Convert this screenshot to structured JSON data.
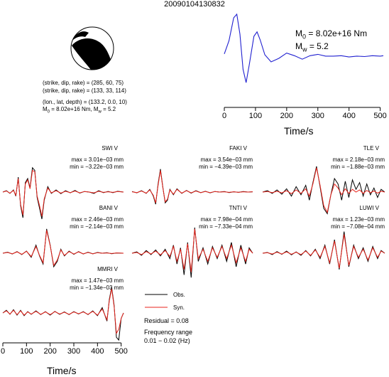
{
  "title": "20090104130832",
  "source_params": {
    "plane1": "(strike, dip, rake) = (285, 60, 75)",
    "plane2": "(strike, dip, rake) = (133, 33, 114)",
    "location": "(lon., lat, depth) = (133.2, 0.0, 10)",
    "moment": "M",
    "moment_sub": "0",
    "moment_val": " = 8.02e+16 Nm, M",
    "mw_sub": "w",
    "mw_val": " = 5.2"
  },
  "stf_labels": {
    "m0": "M",
    "m0_sub": "0",
    "m0_val": " = 8.02e+16 Nm",
    "mw": "M",
    "mw_sub": "w",
    "mw_val": " = 5.2"
  },
  "legend": {
    "obs": "Obs.",
    "syn": "Syn.",
    "residual": "Residual = 0.08",
    "freq_title": "Frequency range",
    "freq_range": "0.01 − 0.02 (Hz)"
  },
  "colors": {
    "observed": "#000000",
    "synthetic": "#e8231b",
    "stf": "#2020d0"
  },
  "chart_data": [
    {
      "type": "line",
      "name": "source time function",
      "xlabel": "Time/s",
      "xlim": [
        0,
        510
      ],
      "xticks": [
        0,
        100,
        200,
        300,
        400,
        500
      ],
      "x": [
        0,
        15,
        30,
        40,
        50,
        60,
        70,
        80,
        95,
        105,
        115,
        130,
        150,
        175,
        200,
        225,
        250,
        275,
        300,
        325,
        350,
        375,
        400,
        425,
        450,
        475,
        500,
        510
      ],
      "values": [
        0.1,
        0.4,
        0.92,
        1.0,
        0.55,
        -0.25,
        -0.55,
        -0.15,
        0.5,
        0.6,
        0.42,
        0.08,
        -0.08,
        0.0,
        0.12,
        0.06,
        -0.02,
        0.06,
        0.09,
        0.05,
        0.05,
        0.06,
        0.03,
        0.05,
        0.04,
        0.06,
        0.05,
        0.06
      ]
    },
    {
      "type": "line",
      "station": "SWI V",
      "max": "max = 3.01e−03 mm",
      "min": "min = −3.22e−03 mm",
      "series": [
        {
          "name": "Obs.",
          "x": [
            0,
            15,
            30,
            45,
            55,
            65,
            75,
            85,
            95,
            105,
            115,
            125,
            135,
            145,
            155,
            165,
            175,
            190,
            205,
            225,
            245,
            265,
            285,
            305,
            325,
            345,
            365,
            385,
            405,
            425,
            445,
            465,
            485,
            510
          ],
          "values": [
            0.0,
            0.05,
            -0.05,
            0.08,
            -0.15,
            0.55,
            -0.5,
            -0.95,
            0.35,
            0.5,
            0.15,
            0.9,
            0.8,
            -0.2,
            -0.6,
            -1.0,
            -0.3,
            0.2,
            -0.05,
            0.08,
            -0.06,
            0.05,
            -0.03,
            0.06,
            -0.04,
            0.02,
            0.0,
            -0.05,
            0.05,
            -0.02,
            0.02,
            -0.02,
            0.03,
            0.0
          ]
        },
        {
          "name": "Syn.",
          "x": [
            0,
            15,
            30,
            45,
            55,
            65,
            75,
            85,
            95,
            105,
            115,
            125,
            135,
            145,
            155,
            165,
            175,
            190,
            205,
            225,
            245,
            265,
            285,
            305,
            325,
            345,
            365,
            385,
            405,
            425,
            445,
            465,
            485,
            510
          ],
          "values": [
            0.0,
            0.04,
            -0.04,
            0.06,
            -0.12,
            0.5,
            -0.45,
            -0.85,
            0.3,
            0.45,
            0.12,
            0.8,
            0.75,
            -0.15,
            -0.5,
            -0.9,
            -0.25,
            0.15,
            -0.03,
            0.05,
            -0.04,
            0.03,
            -0.02,
            0.04,
            -0.03,
            0.02,
            0.0,
            -0.03,
            0.03,
            -0.01,
            0.01,
            -0.01,
            0.02,
            0.0
          ]
        }
      ]
    },
    {
      "type": "line",
      "station": "FAKI V",
      "max": "max = 3.54e−03 mm",
      "min": "min = −4.39e−03 mm",
      "series": [
        {
          "name": "Obs.",
          "x": [
            0,
            20,
            40,
            60,
            75,
            90,
            100,
            110,
            120,
            130,
            140,
            150,
            160,
            175,
            190,
            210,
            230,
            250,
            270,
            290,
            310,
            330,
            350,
            370,
            390,
            410,
            430,
            450,
            470,
            490,
            510
          ],
          "values": [
            0.02,
            -0.03,
            0.05,
            -0.05,
            0.1,
            -0.15,
            -0.45,
            0.3,
            0.85,
            0.2,
            -0.4,
            -0.3,
            0.1,
            -0.1,
            0.12,
            -0.05,
            0.06,
            -0.04,
            0.05,
            -0.02,
            0.03,
            -0.03,
            0.02,
            0.0,
            0.02,
            -0.02,
            0.01,
            -0.01,
            0.02,
            0.0,
            0.01
          ]
        },
        {
          "name": "Syn.",
          "x": [
            0,
            20,
            40,
            60,
            75,
            90,
            100,
            110,
            120,
            130,
            140,
            150,
            160,
            175,
            190,
            210,
            230,
            250,
            270,
            290,
            310,
            330,
            350,
            370,
            390,
            410,
            430,
            450,
            470,
            490,
            510
          ],
          "values": [
            0.01,
            -0.02,
            0.04,
            -0.04,
            0.08,
            -0.12,
            -0.4,
            0.25,
            0.8,
            0.18,
            -0.36,
            -0.26,
            0.08,
            -0.08,
            0.1,
            -0.04,
            0.05,
            -0.03,
            0.04,
            -0.02,
            0.02,
            -0.02,
            0.02,
            0.0,
            0.01,
            -0.01,
            0.01,
            -0.01,
            0.01,
            0.0,
            0.01
          ]
        }
      ]
    },
    {
      "type": "line",
      "station": "TLE V",
      "max": "max = 2.18e−03 mm",
      "min": "min = −1.88e−03 mm",
      "series": [
        {
          "name": "Obs.",
          "x": [
            0,
            20,
            40,
            60,
            80,
            100,
            120,
            140,
            160,
            180,
            195,
            210,
            225,
            240,
            255,
            270,
            285,
            300,
            315,
            330,
            345,
            360,
            375,
            390,
            405,
            420,
            435,
            450,
            465,
            480,
            495,
            510
          ],
          "values": [
            0.0,
            0.05,
            -0.05,
            0.08,
            -0.08,
            0.12,
            -0.15,
            0.2,
            -0.1,
            0.25,
            -0.3,
            0.35,
            0.95,
            0.2,
            -0.6,
            -0.8,
            -0.1,
            0.5,
            0.3,
            -0.3,
            0.4,
            -0.2,
            0.45,
            0.1,
            0.35,
            -0.15,
            0.3,
            -0.1,
            0.15,
            -0.2,
            0.1,
            0.0
          ]
        },
        {
          "name": "Syn.",
          "x": [
            0,
            20,
            40,
            60,
            80,
            100,
            120,
            140,
            160,
            180,
            195,
            210,
            225,
            240,
            255,
            270,
            285,
            300,
            315,
            330,
            345,
            360,
            375,
            390,
            405,
            420,
            435,
            450,
            465,
            480,
            495,
            510
          ],
          "values": [
            0.0,
            0.02,
            -0.02,
            0.03,
            -0.03,
            0.05,
            -0.06,
            0.08,
            -0.05,
            0.12,
            -0.15,
            0.3,
            0.9,
            0.25,
            -0.5,
            -0.75,
            -0.1,
            0.3,
            0.15,
            -0.1,
            0.12,
            -0.05,
            0.1,
            0.0,
            0.08,
            -0.05,
            0.06,
            -0.02,
            0.04,
            -0.04,
            0.03,
            0.0
          ]
        }
      ]
    },
    {
      "type": "line",
      "station": "BANI V",
      "max": "max = 2.46e−03 mm",
      "min": "min = −2.14e−03 mm",
      "series": [
        {
          "name": "Obs.",
          "x": [
            0,
            20,
            40,
            60,
            80,
            100,
            120,
            140,
            155,
            170,
            185,
            200,
            215,
            230,
            245,
            260,
            280,
            300,
            320,
            340,
            360,
            380,
            400,
            420,
            440,
            460,
            480,
            510
          ],
          "values": [
            0.0,
            0.04,
            -0.03,
            0.06,
            -0.05,
            0.08,
            -0.15,
            0.3,
            -0.1,
            -0.4,
            0.9,
            0.3,
            -0.5,
            -0.3,
            0.15,
            -0.1,
            0.08,
            -0.04,
            0.06,
            -0.03,
            0.04,
            -0.02,
            0.03,
            0.0,
            0.02,
            -0.02,
            0.01,
            0.0
          ]
        },
        {
          "name": "Syn.",
          "x": [
            0,
            20,
            40,
            60,
            80,
            100,
            120,
            140,
            155,
            170,
            185,
            200,
            215,
            230,
            245,
            260,
            280,
            300,
            320,
            340,
            360,
            380,
            400,
            420,
            440,
            460,
            480,
            510
          ],
          "values": [
            0.0,
            0.03,
            -0.02,
            0.05,
            -0.04,
            0.07,
            -0.12,
            0.25,
            -0.08,
            -0.35,
            0.85,
            0.28,
            -0.45,
            -0.25,
            0.12,
            -0.08,
            0.06,
            -0.03,
            0.05,
            -0.02,
            0.03,
            -0.02,
            0.02,
            0.0,
            0.01,
            -0.01,
            0.01,
            0.0
          ]
        }
      ]
    },
    {
      "type": "line",
      "station": "TNTI V",
      "max": "max = 7.98e−04 mm",
      "min": "min = −7.33e−04 mm",
      "series": [
        {
          "name": "Obs.",
          "x": [
            0,
            20,
            40,
            60,
            80,
            100,
            120,
            140,
            160,
            175,
            190,
            205,
            220,
            235,
            250,
            265,
            280,
            300,
            320,
            340,
            360,
            380,
            400,
            420,
            440,
            460,
            480,
            495,
            510
          ],
          "values": [
            0.0,
            0.05,
            -0.08,
            0.1,
            -0.05,
            0.12,
            -0.1,
            0.15,
            -0.2,
            0.3,
            -0.4,
            0.2,
            -0.8,
            0.4,
            -0.9,
            0.95,
            -0.3,
            0.2,
            -0.4,
            0.25,
            -0.2,
            0.3,
            -0.3,
            0.4,
            -0.5,
            0.3,
            -0.4,
            0.2,
            0.0
          ]
        },
        {
          "name": "Syn.",
          "x": [
            0,
            20,
            40,
            60,
            80,
            100,
            120,
            140,
            160,
            175,
            190,
            205,
            220,
            235,
            250,
            265,
            280,
            300,
            320,
            340,
            360,
            380,
            400,
            420,
            440,
            460,
            480,
            495,
            510
          ],
          "values": [
            0.0,
            0.03,
            -0.05,
            0.06,
            -0.03,
            0.08,
            -0.06,
            0.1,
            -0.12,
            0.25,
            -0.3,
            0.15,
            -0.6,
            0.35,
            -0.7,
            0.9,
            -0.2,
            0.15,
            -0.3,
            0.2,
            -0.15,
            0.25,
            -0.2,
            0.3,
            -0.35,
            0.2,
            -0.3,
            0.15,
            0.0
          ]
        }
      ]
    },
    {
      "type": "line",
      "station": "LUWI V",
      "max": "max = 1.23e−03 mm",
      "min": "min = −7.08e−04 mm",
      "series": [
        {
          "name": "Obs.",
          "x": [
            0,
            20,
            40,
            60,
            80,
            100,
            120,
            140,
            160,
            180,
            200,
            220,
            240,
            260,
            280,
            300,
            320,
            340,
            360,
            380,
            400,
            420,
            440,
            460,
            480,
            495,
            510
          ],
          "values": [
            0.0,
            0.03,
            -0.05,
            0.06,
            -0.04,
            0.08,
            -0.06,
            0.05,
            -0.08,
            0.1,
            -0.1,
            0.15,
            -0.2,
            0.3,
            -0.4,
            0.5,
            -0.6,
            0.8,
            -0.5,
            0.3,
            -0.2,
            0.2,
            -0.3,
            0.25,
            -0.2,
            0.1,
            0.0
          ]
        },
        {
          "name": "Syn.",
          "x": [
            0,
            20,
            40,
            60,
            80,
            100,
            120,
            140,
            160,
            180,
            200,
            220,
            240,
            260,
            280,
            300,
            320,
            340,
            360,
            380,
            400,
            420,
            440,
            460,
            480,
            495,
            510
          ],
          "values": [
            0.0,
            0.02,
            -0.03,
            0.04,
            -0.03,
            0.05,
            -0.04,
            0.04,
            -0.05,
            0.08,
            -0.08,
            0.12,
            -0.15,
            0.25,
            -0.35,
            0.45,
            -0.55,
            0.7,
            -0.45,
            0.25,
            -0.15,
            0.15,
            -0.25,
            0.2,
            -0.15,
            0.08,
            0.0
          ]
        }
      ]
    },
    {
      "type": "line",
      "station": "MMRI V",
      "max": "max = 1.47e−03 mm",
      "min": "min = −1.34e−03 mm",
      "xlabel": "Time/s",
      "xlim": [
        0,
        510
      ],
      "xticks": [
        0,
        100,
        200,
        300,
        400,
        500
      ],
      "series": [
        {
          "name": "Obs.",
          "x": [
            0,
            15,
            30,
            45,
            60,
            75,
            90,
            105,
            120,
            140,
            160,
            180,
            200,
            220,
            240,
            260,
            280,
            300,
            320,
            340,
            360,
            380,
            400,
            420,
            440,
            450,
            460,
            470,
            480,
            490,
            500,
            510
          ],
          "values": [
            0.0,
            0.1,
            -0.05,
            0.12,
            -0.08,
            0.1,
            -0.1,
            0.05,
            -0.05,
            0.08,
            -0.06,
            0.05,
            -0.08,
            0.06,
            -0.05,
            0.04,
            -0.06,
            0.05,
            -0.04,
            0.05,
            -0.06,
            0.08,
            -0.1,
            0.2,
            -0.3,
            0.5,
            0.95,
            0.3,
            -0.9,
            -1.0,
            -0.2,
            0.0
          ]
        },
        {
          "name": "Syn.",
          "x": [
            0,
            15,
            30,
            45,
            60,
            75,
            90,
            105,
            120,
            140,
            160,
            180,
            200,
            220,
            240,
            260,
            280,
            300,
            320,
            340,
            360,
            380,
            400,
            420,
            440,
            450,
            460,
            470,
            480,
            490,
            500,
            510
          ],
          "values": [
            0.0,
            0.08,
            -0.04,
            0.1,
            -0.06,
            0.08,
            -0.08,
            0.04,
            -0.04,
            0.06,
            -0.05,
            0.04,
            -0.06,
            0.05,
            -0.04,
            0.03,
            -0.05,
            0.04,
            -0.03,
            0.04,
            -0.05,
            0.06,
            -0.08,
            0.15,
            -0.25,
            0.45,
            0.9,
            0.25,
            -0.75,
            -0.6,
            -0.2,
            0.0
          ]
        }
      ]
    }
  ]
}
